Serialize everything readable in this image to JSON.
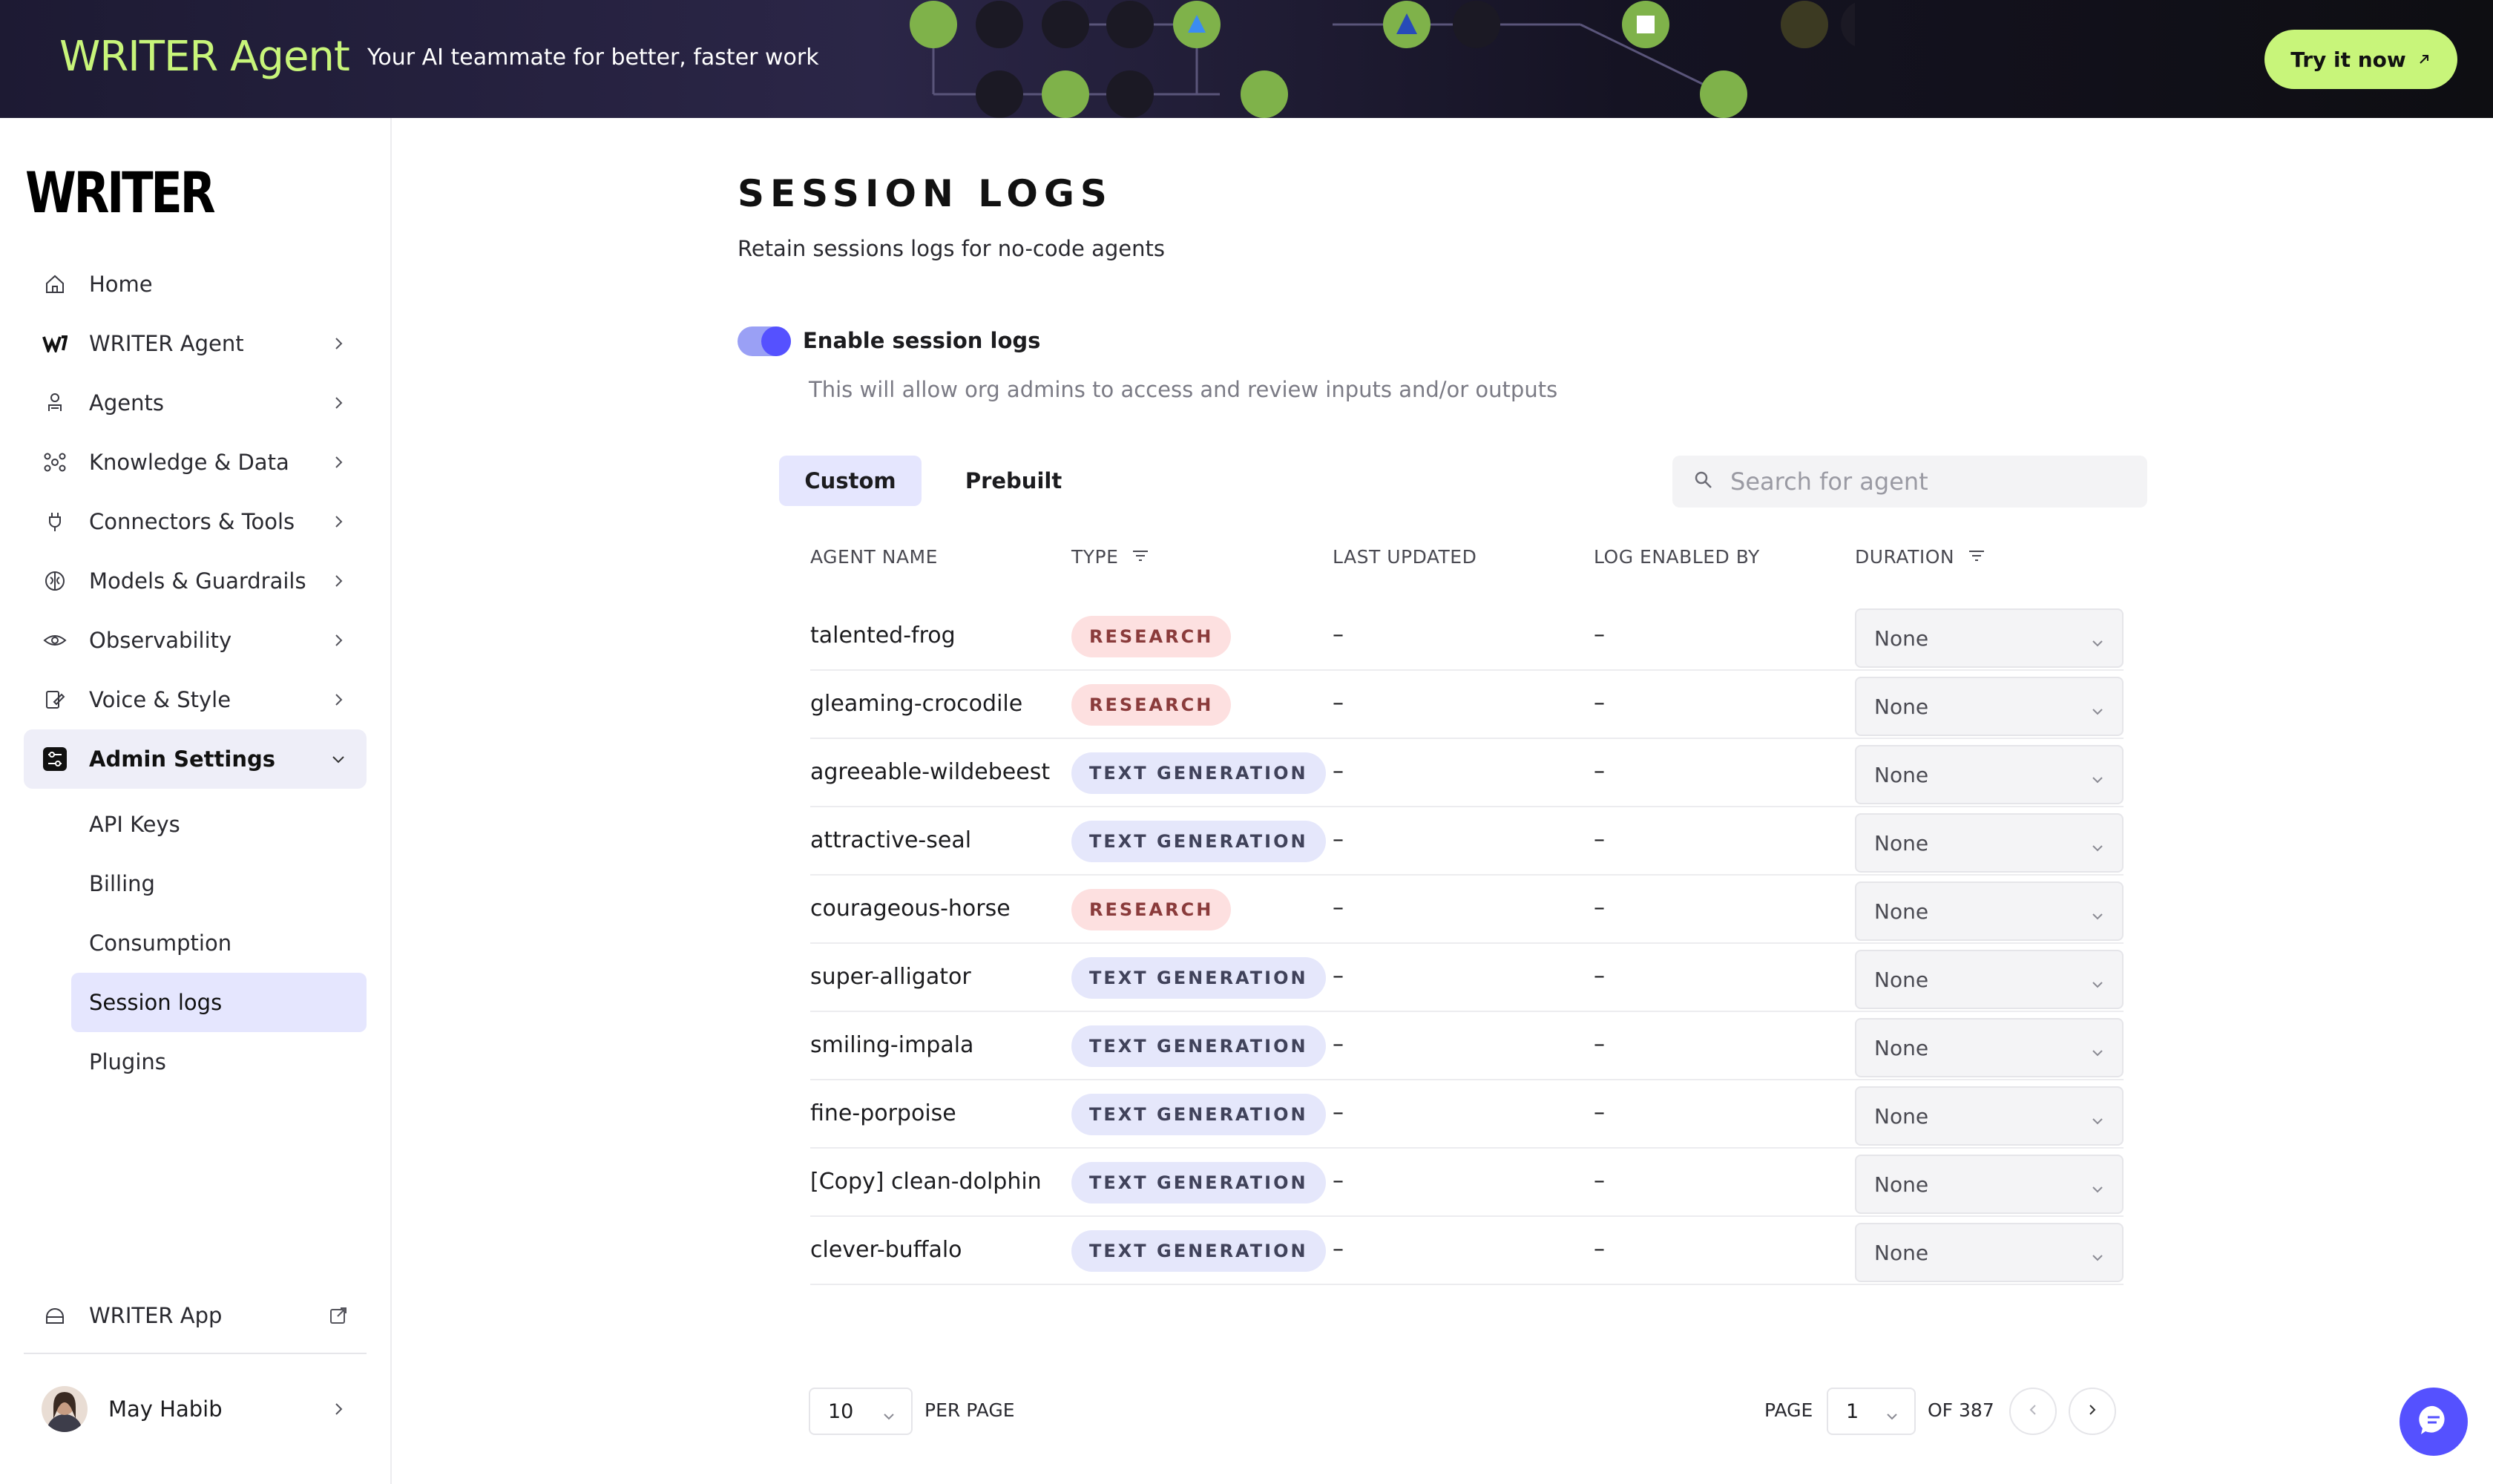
{
  "banner": {
    "brand": "WRITER Agent",
    "tagline": "Your AI teammate for better, faster work",
    "cta_label": "Try it now",
    "accent": "#c8f57a"
  },
  "sidebar": {
    "logo": "WRITER",
    "items": [
      {
        "label": "Home",
        "icon": "home-icon"
      },
      {
        "label": "WRITER Agent",
        "icon": "writer-w-icon"
      },
      {
        "label": "Agents",
        "icon": "agent-icon"
      },
      {
        "label": "Knowledge & Data",
        "icon": "network-icon"
      },
      {
        "label": "Connectors & Tools",
        "icon": "plug-icon"
      },
      {
        "label": "Models & Guardrails",
        "icon": "brain-icon"
      },
      {
        "label": "Observability",
        "icon": "eye-icon"
      },
      {
        "label": "Voice & Style",
        "icon": "voice-style-icon"
      },
      {
        "label": "Admin Settings",
        "icon": "sliders-icon"
      }
    ],
    "sub_items": [
      {
        "label": "API Keys"
      },
      {
        "label": "Billing"
      },
      {
        "label": "Consumption"
      },
      {
        "label": "Session logs"
      },
      {
        "label": "Plugins"
      }
    ],
    "writer_app": "WRITER App",
    "user_name": "May Habib"
  },
  "main": {
    "title": "SESSION LOGS",
    "subtitle": "Retain sessions logs for no-code agents",
    "toggle_label": "Enable session logs",
    "toggle_on": true,
    "toggle_help": "This will allow org admins to access and review inputs and/or outputs",
    "tabs": [
      {
        "label": "Custom"
      },
      {
        "label": "Prebuilt"
      }
    ],
    "search_placeholder": "Search for agent",
    "columns": [
      "AGENT NAME",
      "TYPE",
      "LAST UPDATED",
      "LOG ENABLED BY",
      "DURATION"
    ],
    "rows": [
      {
        "name": "talented-frog",
        "type": "RESEARCH",
        "kind": "research",
        "updated": "–",
        "enabled_by": "–",
        "duration": "None"
      },
      {
        "name": "gleaming-crocodile",
        "type": "RESEARCH",
        "kind": "research",
        "updated": "–",
        "enabled_by": "–",
        "duration": "None"
      },
      {
        "name": "agreeable-wildebeest",
        "type": "TEXT GENERATION",
        "kind": "textgen",
        "updated": "–",
        "enabled_by": "–",
        "duration": "None"
      },
      {
        "name": "attractive-seal",
        "type": "TEXT GENERATION",
        "kind": "textgen",
        "updated": "–",
        "enabled_by": "–",
        "duration": "None"
      },
      {
        "name": "courageous-horse",
        "type": "RESEARCH",
        "kind": "research",
        "updated": "–",
        "enabled_by": "–",
        "duration": "None"
      },
      {
        "name": "super-alligator",
        "type": "TEXT GENERATION",
        "kind": "textgen",
        "updated": "–",
        "enabled_by": "–",
        "duration": "None"
      },
      {
        "name": "smiling-impala",
        "type": "TEXT GENERATION",
        "kind": "textgen",
        "updated": "–",
        "enabled_by": "–",
        "duration": "None"
      },
      {
        "name": "fine-porpoise",
        "type": "TEXT GENERATION",
        "kind": "textgen",
        "updated": "–",
        "enabled_by": "–",
        "duration": "None"
      },
      {
        "name": "[Copy] clean-dolphin",
        "type": "TEXT GENERATION",
        "kind": "textgen",
        "updated": "–",
        "enabled_by": "–",
        "duration": "None"
      },
      {
        "name": "clever-buffalo",
        "type": "TEXT GENERATION",
        "kind": "textgen",
        "updated": "–",
        "enabled_by": "–",
        "duration": "None"
      }
    ]
  },
  "pagination": {
    "per_page_value": "10",
    "per_page_label": "PER PAGE",
    "page_label": "PAGE",
    "page_value": "1",
    "of_label": "OF 387"
  },
  "colors": {
    "primary": "#5551ff",
    "research_badge": "#fde0e0",
    "textgen_badge": "#e5e7fb"
  }
}
